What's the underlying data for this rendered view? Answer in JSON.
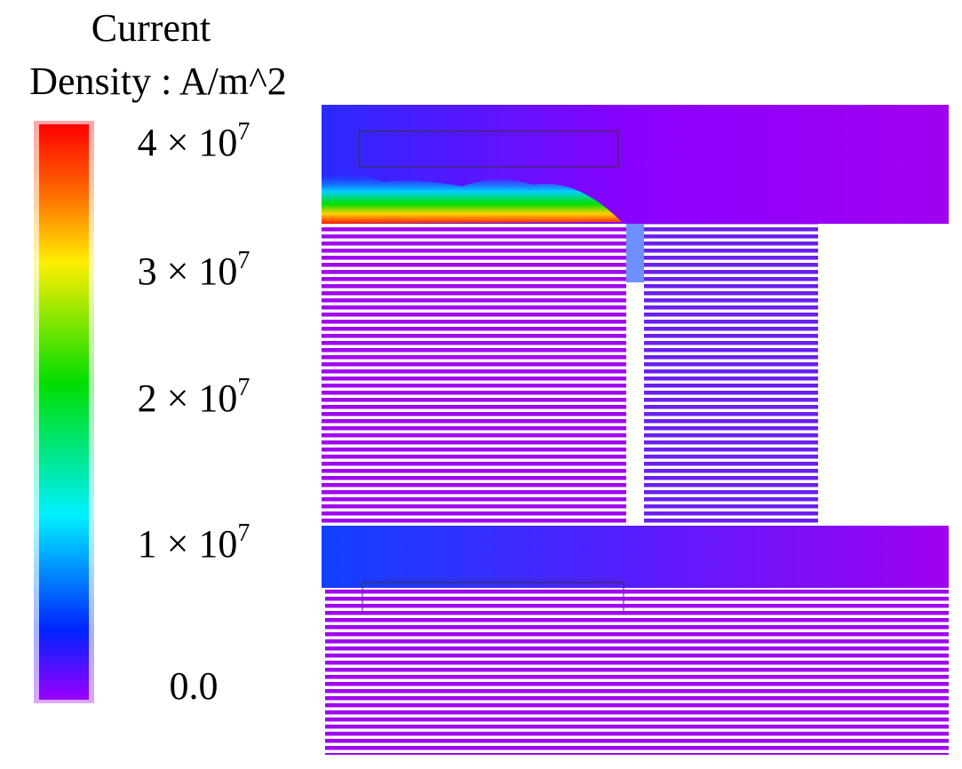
{
  "colorbar": {
    "title": [
      "Current",
      "Density : A/m^2"
    ],
    "ticks": [
      {
        "text": "4 × 10",
        "sup": "7"
      },
      {
        "text": "3 × 10",
        "sup": "7"
      },
      {
        "text": "2 × 10",
        "sup": "7"
      },
      {
        "text": "1 × 10",
        "sup": "7"
      },
      {
        "text": "0.0"
      }
    ]
  }
}
